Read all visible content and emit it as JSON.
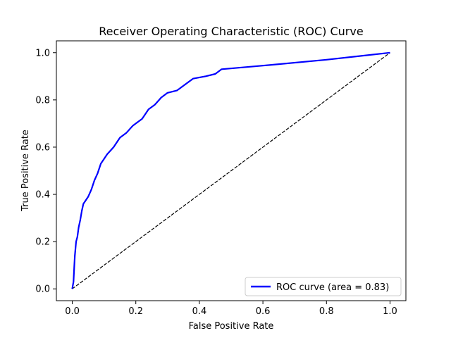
{
  "chart_data": {
    "type": "line",
    "title": "Receiver Operating Characteristic (ROC) Curve",
    "xlabel": "False Positive Rate",
    "ylabel": "True Positive Rate",
    "xlim": [
      -0.05,
      1.05
    ],
    "ylim": [
      -0.05,
      1.05
    ],
    "x_ticks": [
      0.0,
      0.2,
      0.4,
      0.6,
      0.8,
      1.0
    ],
    "x_tick_labels": [
      "0.0",
      "0.2",
      "0.4",
      "0.6",
      "0.8",
      "1.0"
    ],
    "y_ticks": [
      0.0,
      0.2,
      0.4,
      0.6,
      0.8,
      1.0
    ],
    "y_tick_labels": [
      "0.0",
      "0.2",
      "0.4",
      "0.6",
      "0.8",
      "1.0"
    ],
    "grid": false,
    "legend_position": "lower right",
    "series": [
      {
        "name": "ROC curve (area = 0.83)",
        "color": "#0000ff",
        "line_style": "solid",
        "x": [
          0.0,
          0.004,
          0.006,
          0.008,
          0.012,
          0.016,
          0.02,
          0.025,
          0.03,
          0.035,
          0.04,
          0.05,
          0.06,
          0.07,
          0.08,
          0.09,
          0.1,
          0.11,
          0.13,
          0.15,
          0.17,
          0.19,
          0.2,
          0.22,
          0.24,
          0.26,
          0.28,
          0.3,
          0.33,
          0.36,
          0.38,
          0.42,
          0.45,
          0.47,
          0.6,
          0.8,
          1.0
        ],
        "y": [
          0.0,
          0.03,
          0.09,
          0.14,
          0.2,
          0.22,
          0.26,
          0.29,
          0.33,
          0.36,
          0.37,
          0.39,
          0.42,
          0.46,
          0.49,
          0.53,
          0.55,
          0.57,
          0.6,
          0.64,
          0.66,
          0.69,
          0.7,
          0.72,
          0.76,
          0.78,
          0.81,
          0.83,
          0.84,
          0.87,
          0.89,
          0.9,
          0.91,
          0.93,
          0.945,
          0.97,
          1.0
        ]
      },
      {
        "name": "",
        "color": "#000000",
        "line_style": "dashed",
        "x": [
          0.0,
          1.0
        ],
        "y": [
          0.0,
          1.0
        ]
      }
    ]
  }
}
